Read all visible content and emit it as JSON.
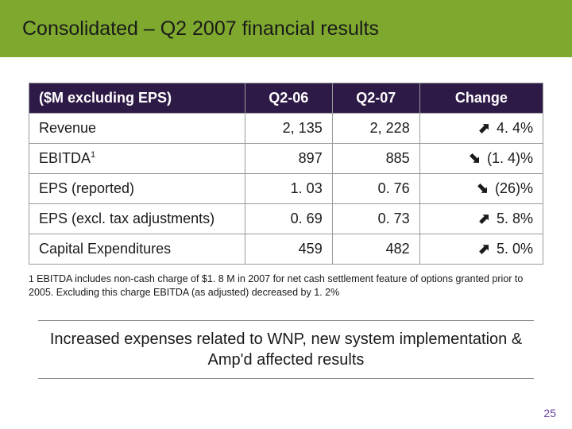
{
  "title": "Consolidated – Q2 2007 financial results",
  "table": {
    "header_label": "($M excluding EPS)",
    "columns": [
      "Q2‑06",
      "Q2‑07",
      "Change"
    ],
    "rows": [
      {
        "label": "Revenue",
        "q206": "2, 135",
        "q207": "2, 228",
        "dir": "up",
        "change": "4. 4%"
      },
      {
        "label": "EBITDA",
        "sup": "1",
        "q206": "897",
        "q207": "885",
        "dir": "down",
        "change": "(1. 4)%"
      },
      {
        "label": "EPS (reported)",
        "q206": "1. 03",
        "q207": "0. 76",
        "dir": "down",
        "change": "(26)%"
      },
      {
        "label": "EPS (excl. tax adjustments)",
        "q206": "0. 69",
        "q207": "0. 73",
        "dir": "up",
        "change": "5. 8%"
      },
      {
        "label": "Capital Expenditures",
        "q206": "459",
        "q207": "482",
        "dir": "up",
        "change": "5. 0%"
      }
    ]
  },
  "footnote": {
    "marker": "1",
    "text": "EBITDA includes non-cash charge of $1. 8 M in 2007 for net cash settlement feature of options granted prior to 2005. Excluding this charge EBITDA (as adjusted) decreased by 1. 2%"
  },
  "callout": "Increased expenses related to WNP, new system implementation & Amp'd affected results",
  "page_number": "25",
  "arrows": {
    "up": "⬈",
    "down": "⬊"
  },
  "colors": {
    "header_bg": "#7fa92e",
    "table_head_bg": "#2e1a47",
    "page_num": "#6a3fa0"
  }
}
